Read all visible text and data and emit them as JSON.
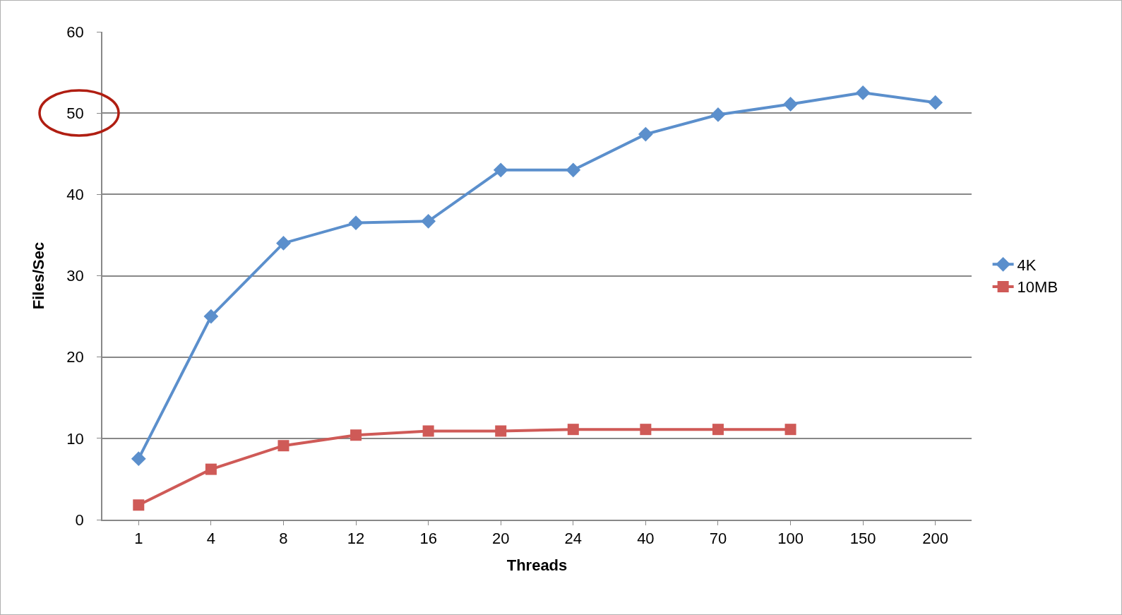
{
  "chart_data": {
    "type": "line",
    "xlabel": "Threads",
    "ylabel": "Files/Sec",
    "categories": [
      "1",
      "4",
      "8",
      "12",
      "16",
      "20",
      "24",
      "40",
      "70",
      "100",
      "150",
      "200"
    ],
    "series": [
      {
        "name": "4K",
        "color": "#5b8fcc",
        "marker": "diamond",
        "values": [
          7.5,
          25,
          34,
          36.5,
          36.7,
          43,
          43,
          47.4,
          49.8,
          51.1,
          52.5,
          51.3
        ]
      },
      {
        "name": "10MB",
        "color": "#cf5a57",
        "marker": "square",
        "values": [
          1.8,
          6.2,
          9.1,
          10.4,
          10.9,
          10.9,
          11.1,
          11.1,
          11.1,
          11.1,
          null,
          null
        ]
      }
    ],
    "ylim": [
      0,
      60
    ],
    "yticks": [
      0,
      10,
      20,
      30,
      40,
      50,
      60
    ],
    "grid": "y",
    "legend": "right",
    "line_style": "solid"
  }
}
